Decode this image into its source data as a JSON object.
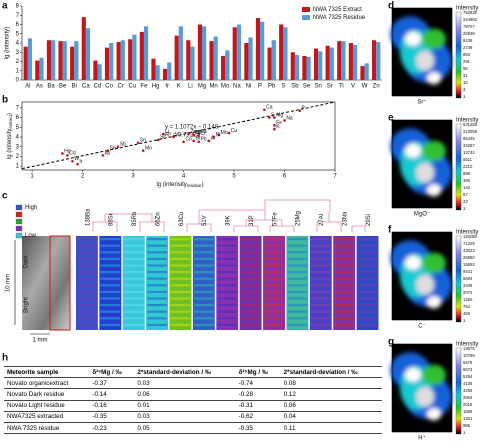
{
  "panel_labels": [
    "a",
    "b",
    "c",
    "d",
    "e",
    "f",
    "g",
    "h"
  ],
  "chart_data": [
    {
      "type": "bar",
      "y_label": "lg (intensity)",
      "categories": [
        "Al",
        "As",
        "Ba",
        "Be",
        "Bi",
        "Ca",
        "Cd",
        "Co",
        "Cr",
        "Cu",
        "Fe",
        "Hg",
        "Ir",
        "K",
        "Li",
        "Mg",
        "Mn",
        "Mo",
        "Na",
        "Ni",
        "P",
        "Pb",
        "S",
        "Sb",
        "Se",
        "Sn",
        "Sr",
        "Ti",
        "V",
        "W",
        "Zn"
      ],
      "series": [
        {
          "name": "NWA 7325 Extract",
          "color": "#c0181f",
          "values": [
            3.6,
            2.1,
            4.3,
            4.2,
            3.6,
            6.8,
            2.1,
            3.5,
            4.1,
            4.4,
            5.2,
            2.3,
            1.2,
            4.8,
            4.3,
            6.0,
            4.2,
            2.6,
            5.7,
            4.0,
            6.7,
            3.5,
            6.0,
            3.0,
            2.6,
            3.4,
            3.7,
            4.2,
            4.0,
            1.5,
            4.3
          ]
        },
        {
          "name": "NWA 7325 Residue",
          "color": "#5b9bd5",
          "values": [
            4.5,
            2.4,
            4.3,
            4.2,
            4.2,
            5.6,
            1.7,
            4.0,
            4.3,
            4.9,
            5.8,
            1.6,
            1.9,
            5.8,
            3.6,
            5.8,
            4.7,
            3.2,
            6.0,
            4.6,
            6.3,
            4.3,
            5.7,
            2.7,
            2.5,
            3.1,
            3.5,
            4.2,
            3.8,
            1.8,
            4.1
          ]
        }
      ],
      "ylim": [
        0,
        8
      ],
      "yticks": [
        0,
        1,
        2,
        3,
        4,
        5,
        6,
        7,
        8
      ],
      "legend": "upper right"
    },
    {
      "type": "scatter",
      "x_label": [
        "lg (intensity",
        "residue",
        ")"
      ],
      "y_label": [
        "lg (intensity",
        "extract",
        ")"
      ],
      "labels": [
        "Al",
        "As",
        "Ba",
        "Be",
        "Bi",
        "Ca",
        "Cd",
        "Co",
        "Cr",
        "Cu",
        "Fe",
        "Hg",
        "Ir",
        "K",
        "Li",
        "Mg",
        "Mn",
        "Mo",
        "Na",
        "Ni",
        "P",
        "Pb",
        "S",
        "Sb",
        "Se",
        "Sn",
        "Sr",
        "Ti",
        "V",
        "W",
        "Zn"
      ],
      "x": [
        4.5,
        2.4,
        4.3,
        4.2,
        4.2,
        5.6,
        1.7,
        4.0,
        4.3,
        4.9,
        5.8,
        1.6,
        1.9,
        5.8,
        3.6,
        5.8,
        4.7,
        3.2,
        6.0,
        4.6,
        6.3,
        4.3,
        5.7,
        2.7,
        2.5,
        3.1,
        3.5,
        4.2,
        3.8,
        1.8,
        4.1
      ],
      "y": [
        3.6,
        2.1,
        4.3,
        4.2,
        3.6,
        6.8,
        2.1,
        3.5,
        4.1,
        4.4,
        5.2,
        2.3,
        1.2,
        4.8,
        4.3,
        6.0,
        4.2,
        2.6,
        5.7,
        4.0,
        6.7,
        3.5,
        6.0,
        3.0,
        2.6,
        3.4,
        3.7,
        4.2,
        4.0,
        1.5,
        4.3
      ],
      "color": "#c0181f",
      "fit_line": {
        "slope": 1.1072,
        "intercept": -0.148
      },
      "annotations": [
        "y = 1.1072x − 0.148",
        "R² = 0.7722"
      ],
      "xlim": [
        0.8,
        7
      ],
      "xticks": [
        1,
        2,
        3,
        4,
        5,
        6,
        7
      ],
      "ylim": [
        0.6,
        7.6
      ],
      "yticks": [
        1,
        2,
        3,
        4,
        5,
        6,
        7
      ]
    }
  ],
  "panel_c": {
    "legend": [
      "High",
      "",
      "",
      "",
      "Low"
    ],
    "dark": "Dark",
    "bright": "Bright",
    "scale_v": "10 mm",
    "scale_h": "1 mm",
    "isotopes": [
      "138Ba",
      "88Sr",
      "85Rb",
      "66Zn",
      "63Cu",
      "51V",
      "39K",
      "31P",
      "57Fe",
      "25Mg",
      "27Al",
      "23Na",
      "29Si"
    ]
  },
  "maps": [
    {
      "species": "Sr⁺",
      "colorbar_title": "Intensity",
      "colorbar_labels": [
        "752835",
        "244962",
        "79707",
        "25936",
        "8439",
        "2746",
        "893",
        "291",
        "95",
        "31",
        "10",
        "3",
        "1"
      ]
    },
    {
      "species": "MgO⁻",
      "colorbar_title": "Intensity",
      "colorbar_labels": [
        "531258",
        "213059",
        "85445",
        "34267",
        "13742",
        "5511",
        "2210",
        "886",
        "355",
        "142",
        "57",
        "23",
        "1"
      ]
    },
    {
      "species": "C⁻",
      "colorbar_title": "Intensity",
      "colorbar_labels": [
        "118258",
        "71329",
        "43023",
        "25950",
        "15652",
        "9441",
        "5694",
        "3435",
        "2072",
        "1250",
        "754",
        "455",
        "1"
      ]
    },
    {
      "species": "H⁺",
      "colorbar_title": "Intensity",
      "colorbar_labels": [
        "13675",
        "10766",
        "8476",
        "6673",
        "5254",
        "4136",
        "3256",
        "2564",
        "2018",
        "1589",
        "1251",
        "985",
        "1"
      ]
    }
  ],
  "table": {
    "header": [
      "Meteorite sample",
      "δ²⁶Mg / ‰",
      "2*standard-deviation / ‰",
      "δ²⁵Mg / ‰",
      "2*standard-deviation / ‰"
    ],
    "rows": [
      [
        "Novato organicextract",
        "-0.37",
        "0.03",
        "-0.74",
        "0.08"
      ],
      [
        "Novato Dark residue",
        "-0.14",
        "0.06",
        "-0.28",
        "0.12"
      ],
      [
        "Novato Light residue",
        "-0.16",
        "0.01",
        "-0.31",
        "0.06"
      ],
      [
        "NWA7325 extracted",
        "-0.35",
        "0.03",
        "-0.62",
        "0.04"
      ],
      [
        "NWA 7325 residue",
        "-0.23",
        "0.05",
        "-0.35",
        "0.11"
      ]
    ]
  }
}
